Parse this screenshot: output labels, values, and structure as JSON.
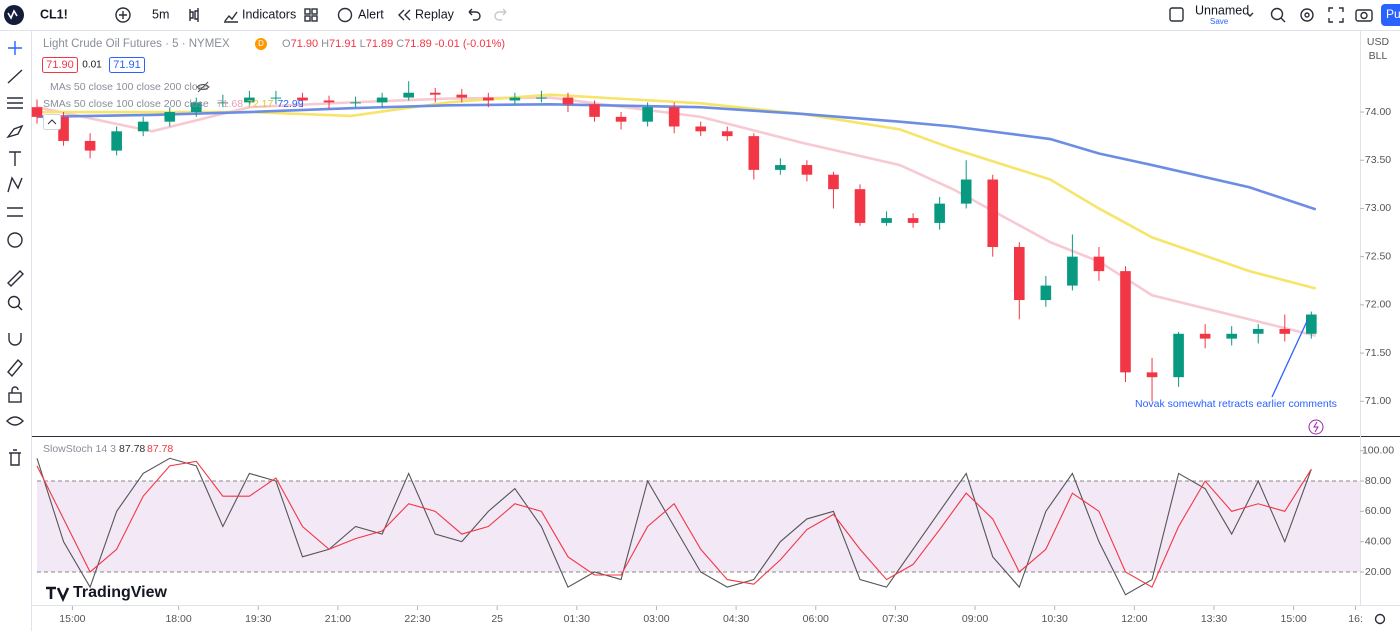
{
  "toolbar": {
    "symbol": "CL1!",
    "interval": "5m",
    "indicators": "Indicators",
    "alert": "Alert",
    "replay": "Replay",
    "layout": "Unnamed",
    "save": "Save",
    "publish": "Pu"
  },
  "header": {
    "ohlc": [
      {
        "label": "O",
        "value": "71.90"
      },
      {
        "label": "H",
        "value": "71.91"
      },
      {
        "label": "L",
        "value": "71.89"
      },
      {
        "label": "C",
        "value": "71.89"
      }
    ],
    "change": "-0.01 (-0.01%)",
    "badge": "D",
    "price_boxes": [
      "71.90",
      "0.01",
      "71.91"
    ],
    "indicator_rows": [
      "MAs 50 close 100 close 200 close",
      "SMAs 50 close 100 close 200 close"
    ]
  },
  "price_axis": {
    "currency": "USD",
    "unit": "BLL"
  },
  "brand": "TradingView",
  "chart_data": [
    {
      "type": "candlestick",
      "title": "Light Crude Oil Futures · 5 · NYMEX",
      "x": [
        0,
        6,
        12,
        18,
        24,
        30,
        36,
        42,
        48,
        54,
        60,
        66,
        72,
        78,
        84,
        90,
        96,
        102,
        108,
        114,
        120,
        126,
        132,
        138,
        144,
        150,
        156,
        162,
        168,
        174,
        180,
        186,
        192,
        198,
        204,
        210,
        216,
        222,
        228,
        234,
        240,
        246,
        252,
        258,
        264,
        270,
        276,
        282,
        288
      ],
      "open": [
        74.05,
        73.95,
        73.7,
        73.6,
        73.8,
        73.9,
        74.0,
        74.1,
        74.1,
        74.15,
        74.15,
        74.12,
        74.1,
        74.1,
        74.15,
        74.2,
        74.18,
        74.15,
        74.12,
        74.15,
        74.15,
        74.08,
        73.95,
        73.9,
        74.05,
        73.85,
        73.8,
        73.75,
        73.4,
        73.45,
        73.35,
        73.2,
        72.85,
        72.9,
        72.85,
        73.05,
        73.3,
        72.6,
        72.05,
        72.2,
        72.5,
        72.35,
        71.3,
        71.25,
        71.7,
        71.65,
        71.7,
        71.75,
        71.7
      ],
      "high": [
        74.13,
        74.0,
        73.78,
        73.85,
        73.95,
        74.05,
        74.15,
        74.18,
        74.22,
        74.22,
        74.2,
        74.17,
        74.16,
        74.2,
        74.32,
        74.25,
        74.24,
        74.2,
        74.2,
        74.22,
        74.2,
        74.12,
        74.0,
        74.1,
        74.1,
        73.9,
        73.85,
        73.78,
        73.52,
        73.5,
        73.38,
        73.25,
        72.97,
        72.95,
        73.12,
        73.5,
        73.35,
        72.65,
        72.3,
        72.73,
        72.6,
        72.4,
        71.45,
        71.72,
        71.8,
        71.78,
        71.8,
        71.9,
        71.93
      ],
      "low": [
        73.88,
        73.65,
        73.52,
        73.55,
        73.75,
        73.85,
        73.95,
        74.05,
        74.05,
        74.08,
        74.05,
        74.03,
        74.05,
        74.05,
        74.12,
        74.1,
        74.1,
        74.05,
        74.08,
        74.1,
        74.0,
        73.9,
        73.82,
        73.85,
        73.78,
        73.75,
        73.7,
        73.3,
        73.35,
        73.28,
        73.0,
        72.82,
        72.82,
        72.8,
        72.78,
        73.0,
        72.5,
        71.85,
        71.98,
        72.15,
        72.25,
        71.2,
        71.0,
        71.15,
        71.55,
        71.58,
        71.6,
        71.62,
        71.65
      ],
      "close": [
        73.95,
        73.7,
        73.6,
        73.8,
        73.9,
        74.0,
        74.1,
        74.1,
        74.15,
        74.15,
        74.12,
        74.1,
        74.1,
        74.15,
        74.2,
        74.18,
        74.15,
        74.12,
        74.15,
        74.15,
        74.08,
        73.95,
        73.9,
        74.05,
        73.85,
        73.8,
        73.75,
        73.4,
        73.45,
        73.35,
        73.2,
        72.85,
        72.9,
        72.85,
        73.05,
        73.3,
        72.6,
        72.05,
        72.2,
        72.5,
        72.35,
        71.3,
        71.25,
        71.7,
        71.65,
        71.7,
        71.75,
        71.7,
        71.9
      ],
      "up_color": "#089981",
      "down_color": "#f23645",
      "ma_x": [
        0,
        26,
        48,
        71,
        93,
        116,
        150,
        173,
        195,
        207,
        229,
        240,
        252,
        274,
        289
      ],
      "overlays": [
        {
          "color": "#f7c9d2",
          "values": [
            74.05,
            73.8,
            74.05,
            74.1,
            74.14,
            74.15,
            73.95,
            73.68,
            73.45,
            73.2,
            72.65,
            72.45,
            72.1,
            71.85,
            71.68
          ]
        },
        {
          "color": "#f6e56a",
          "values": [
            74.0,
            74.0,
            74.0,
            73.96,
            74.1,
            74.18,
            74.09,
            73.98,
            73.82,
            73.62,
            73.3,
            73.0,
            72.7,
            72.35,
            72.17
          ]
        },
        {
          "color": "#6b8de3",
          "values": [
            73.95,
            73.97,
            74.0,
            74.04,
            74.07,
            74.08,
            74.05,
            73.98,
            73.9,
            73.85,
            73.72,
            73.57,
            73.45,
            73.22,
            72.99
          ]
        }
      ],
      "xlim": [
        0,
        299
      ],
      "ylim": [
        70.64,
        74.83
      ],
      "yticks": [
        {
          "value": 71,
          "label": "71.00"
        },
        {
          "value": 71.5,
          "label": "71.50"
        },
        {
          "value": 72,
          "label": "72.00"
        },
        {
          "value": 72.5,
          "label": "72.50"
        },
        {
          "value": 73,
          "label": "73.00"
        },
        {
          "value": 73.5,
          "label": "73.50"
        },
        {
          "value": 74,
          "label": "74.00"
        }
      ],
      "xticks": [
        {
          "value": 8,
          "label": "15:00"
        },
        {
          "value": 32,
          "label": "18:00"
        },
        {
          "value": 50,
          "label": "19:30"
        },
        {
          "value": 68,
          "label": "21:00"
        },
        {
          "value": 86,
          "label": "22:30"
        },
        {
          "value": 104,
          "label": "25"
        },
        {
          "value": 122,
          "label": "01:30"
        },
        {
          "value": 140,
          "label": "03:00"
        },
        {
          "value": 158,
          "label": "04:30"
        },
        {
          "value": 176,
          "label": "06:00"
        },
        {
          "value": 194,
          "label": "07:30"
        },
        {
          "value": 212,
          "label": "09:00"
        },
        {
          "value": 230,
          "label": "10:30"
        },
        {
          "value": 248,
          "label": "12:00"
        },
        {
          "value": 266,
          "label": "13:30"
        },
        {
          "value": 284,
          "label": "15:00"
        },
        {
          "value": 298,
          "label": "16:"
        }
      ],
      "annotation": "Novak somewhat retracts earlier comments"
    },
    {
      "type": "line",
      "title": "SlowStoch 14 3",
      "x": [
        0,
        6,
        12,
        18,
        24,
        30,
        36,
        42,
        48,
        54,
        60,
        66,
        72,
        78,
        84,
        90,
        96,
        102,
        108,
        114,
        120,
        126,
        132,
        138,
        144,
        150,
        156,
        162,
        168,
        174,
        180,
        186,
        192,
        198,
        204,
        210,
        216,
        222,
        228,
        234,
        240,
        246,
        252,
        258,
        264,
        270,
        276,
        282,
        288
      ],
      "series": [
        {
          "color": "#555555",
          "values": [
            95,
            40,
            10,
            60,
            85,
            95,
            90,
            50,
            85,
            80,
            30,
            35,
            50,
            45,
            85,
            45,
            40,
            60,
            75,
            50,
            10,
            20,
            15,
            80,
            50,
            20,
            10,
            15,
            40,
            55,
            60,
            15,
            10,
            35,
            60,
            85,
            30,
            10,
            60,
            85,
            40,
            5,
            15,
            85,
            75,
            45,
            80,
            40,
            87.78
          ]
        },
        {
          "color": "#f23645",
          "values": [
            90,
            55,
            20,
            35,
            70,
            90,
            93,
            70,
            70,
            82,
            50,
            35,
            42,
            47,
            65,
            60,
            45,
            50,
            65,
            60,
            30,
            18,
            18,
            50,
            65,
            35,
            15,
            12,
            28,
            48,
            58,
            35,
            15,
            25,
            48,
            72,
            55,
            20,
            35,
            72,
            60,
            20,
            10,
            50,
            80,
            60,
            65,
            60,
            87.78
          ]
        }
      ],
      "band": [
        20,
        80
      ],
      "band_color": "#f3e8f6",
      "xlim": [
        0,
        299
      ],
      "ylim": [
        0,
        100
      ],
      "yticks": [
        {
          "value": 20,
          "label": "20.00"
        },
        {
          "value": 40,
          "label": "40.00"
        },
        {
          "value": 60,
          "label": "60.00"
        },
        {
          "value": 80,
          "label": "80.00"
        },
        {
          "value": 100,
          "label": "100.00"
        }
      ]
    }
  ]
}
